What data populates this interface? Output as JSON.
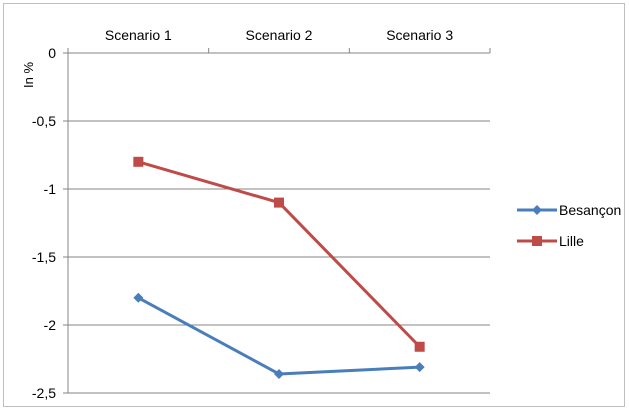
{
  "chart_data": {
    "type": "line",
    "categories": [
      "Scenario 1",
      "Scenario 2",
      "Scenario 3"
    ],
    "ylabel": "In %",
    "ylim": [
      -2.5,
      0
    ],
    "yticks": [
      0,
      -0.5,
      -1,
      -1.5,
      -2,
      -2.5
    ],
    "ytick_labels": [
      "0",
      "-0,5",
      "-1",
      "-1,5",
      "-2",
      "-2,5"
    ],
    "x_axis_position": "top",
    "grid": true,
    "legend_position": "right",
    "series": [
      {
        "name": "Besançon",
        "values": [
          -1.8,
          -2.36,
          -2.31
        ],
        "color": "#4a7ebb",
        "marker": "diamond"
      },
      {
        "name": "Lille",
        "values": [
          -0.8,
          -1.1,
          -2.16
        ],
        "color": "#be4b48",
        "marker": "square"
      }
    ]
  }
}
